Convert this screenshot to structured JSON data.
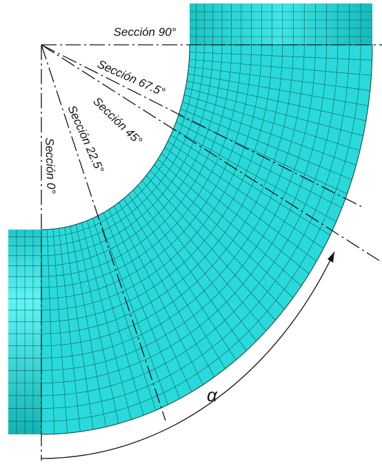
{
  "sections": [
    {
      "label": "Sección 0°"
    },
    {
      "label": "Sección 22.5°"
    },
    {
      "label": "Sección 45°"
    },
    {
      "label": "Sección 67.5°"
    },
    {
      "label": "Sección 90°"
    }
  ],
  "angle_label": "α"
}
